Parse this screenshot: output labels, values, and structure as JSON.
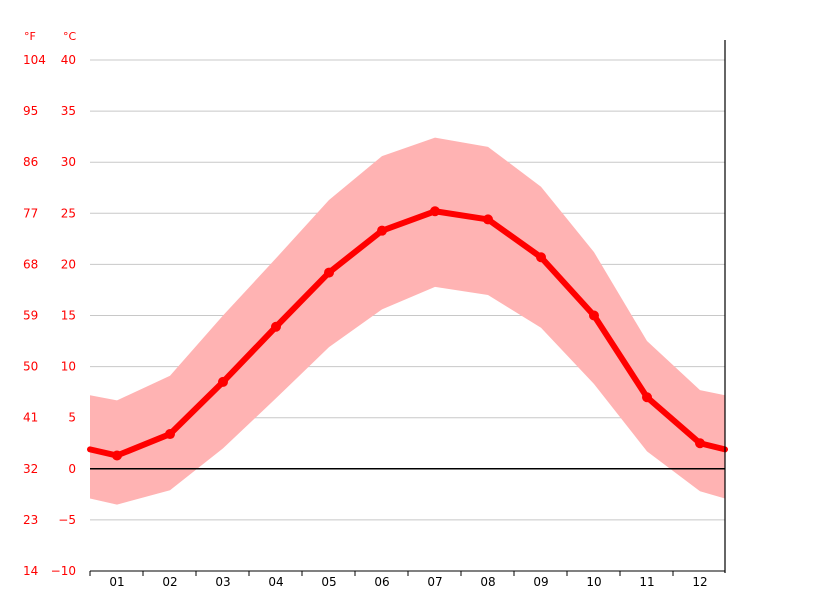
{
  "chart_data": {
    "type": "line",
    "categories": [
      "01",
      "02",
      "03",
      "04",
      "05",
      "06",
      "07",
      "08",
      "09",
      "10",
      "11",
      "12"
    ],
    "series": [
      {
        "role": "mean",
        "values": [
          1.3,
          3.4,
          8.5,
          13.9,
          19.2,
          23.3,
          25.2,
          24.4,
          20.7,
          15.0,
          7.0,
          2.5
        ]
      },
      {
        "role": "max",
        "values": [
          6.7,
          9.1,
          15.0,
          20.6,
          26.3,
          30.6,
          32.4,
          31.5,
          27.6,
          21.2,
          12.5,
          7.7
        ]
      },
      {
        "role": "min",
        "values": [
          -3.5,
          -2.1,
          2.0,
          6.9,
          11.9,
          15.6,
          17.8,
          17.0,
          13.8,
          8.3,
          1.7,
          -2.2
        ]
      }
    ],
    "edge_values": {
      "mean": [
        1.9,
        1.9
      ],
      "max": [
        7.2,
        7.2
      ],
      "min": [
        -2.9,
        -2.9
      ]
    },
    "y_left_unit": "°F",
    "y_right_unit": "°C",
    "y_ticks_c": [
      "40",
      "35",
      "30",
      "25",
      "20",
      "15",
      "10",
      "5",
      "0",
      "−5",
      "−10"
    ],
    "y_ticks_f": [
      "104",
      "95",
      "86",
      "77",
      "68",
      "59",
      "50",
      "41",
      "32",
      "23",
      "14"
    ],
    "ylim_c": [
      -10,
      40
    ],
    "grid": true,
    "legend": "none",
    "colors": {
      "line": "#ff0000",
      "band": "#ffb3b3",
      "grid": "#c8c8c8",
      "zero_line": "#000000",
      "tick_text_red": "#ff0000",
      "tick_text_black": "#000000"
    }
  }
}
